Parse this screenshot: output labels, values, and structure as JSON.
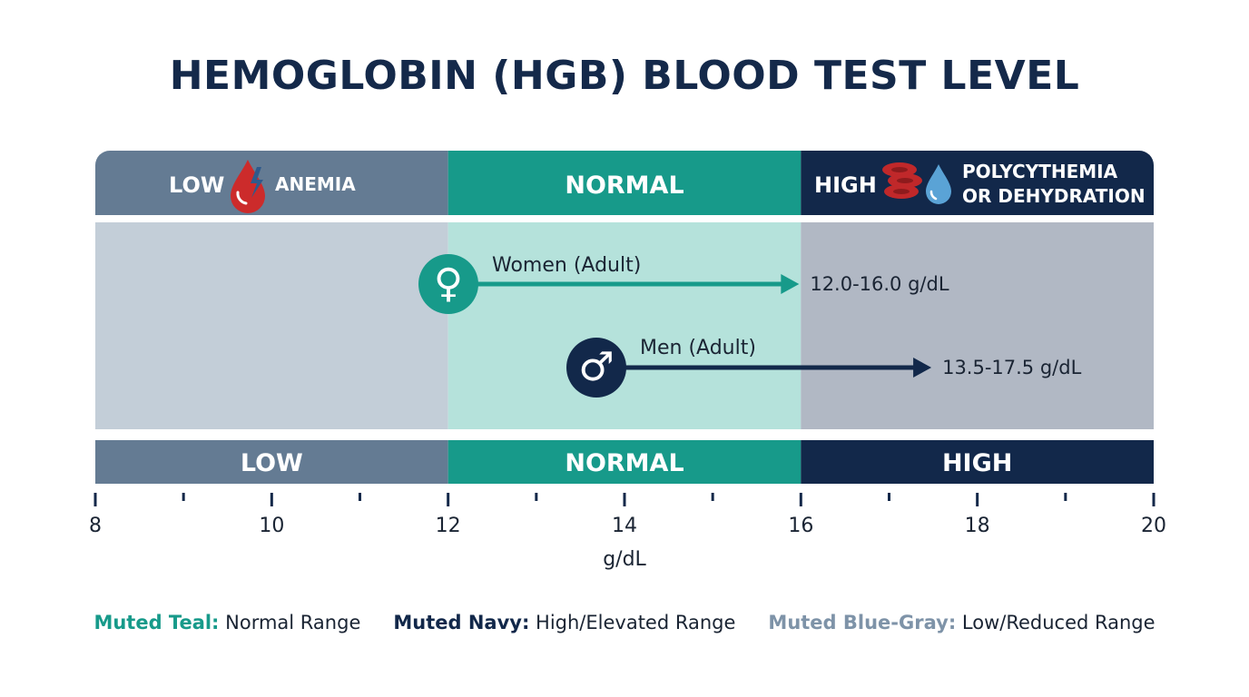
{
  "title": "HEMOGLOBIN (HGB) BLOOD TEST LEVEL",
  "colors": {
    "low": "#647b93",
    "normal": "#179a8a",
    "high": "#12284a",
    "low_light": "#c3ced8",
    "normal_light": "#b5e2db",
    "high_light": "#b1b8c4"
  },
  "chart_data": {
    "type": "range",
    "xlabel": "g/dL",
    "xlim": [
      8,
      20
    ],
    "major_ticks": [
      8,
      10,
      12,
      14,
      16,
      18,
      20
    ],
    "minor_ticks": [
      9,
      11,
      13,
      15,
      17,
      19
    ],
    "zones": [
      {
        "key": "low",
        "start": 8,
        "end": 12,
        "label": "LOW",
        "header_label": "LOW",
        "header_desc": [
          "ANEMIA"
        ],
        "header_icon": "blood-drop-lightning-icon"
      },
      {
        "key": "normal",
        "start": 12,
        "end": 16,
        "label": "NORMAL",
        "header_label": "NORMAL",
        "header_desc": [],
        "header_icon": ""
      },
      {
        "key": "high",
        "start": 16,
        "end": 20,
        "label": "HIGH",
        "header_label": "HIGH",
        "header_desc": [
          "POLYCYTHEMIA",
          "OR DEHYDRATION"
        ],
        "header_icon": "red-blood-cells-water-drop-icon"
      }
    ],
    "ranges": [
      {
        "name": "Women (Adult)",
        "start": 12.0,
        "end": 16.0,
        "label": "12.0-16.0 g/dL",
        "icon": "female-symbol-icon",
        "glyph": "♀",
        "color": "#179a8a"
      },
      {
        "name": "Men (Adult)",
        "start": 13.5,
        "end": 17.5,
        "label": "13.5-17.5 g/dL",
        "icon": "male-symbol-icon",
        "glyph": "♂",
        "color": "#12284a"
      }
    ]
  },
  "legend": [
    {
      "key": "Muted Teal:",
      "text": " Normal Range",
      "color": "#179a8a"
    },
    {
      "key": "Muted Navy:",
      "text": " High/Elevated Range",
      "color": "#12284a"
    },
    {
      "key": "Muted Blue-Gray:",
      "text": " Low/Reduced Range",
      "color": "#7e93a8"
    }
  ]
}
